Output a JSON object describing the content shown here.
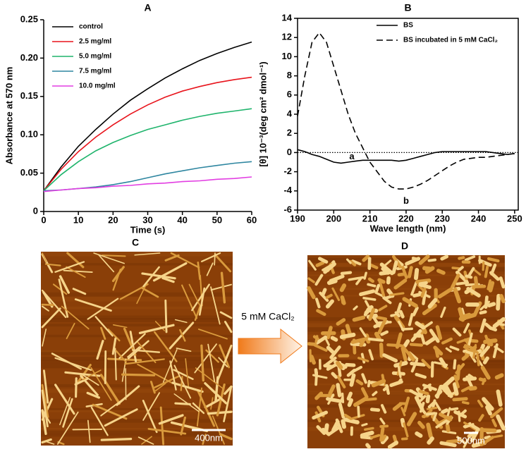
{
  "chart_data": [
    {
      "type": "line",
      "title": "A",
      "x_label": "Time (s)",
      "y_label": "Absorbance at 570 nm",
      "x": [
        0,
        5,
        10,
        15,
        20,
        25,
        30,
        35,
        40,
        45,
        50,
        55,
        60
      ],
      "series": [
        {
          "name": "control",
          "color": "#000000",
          "values": [
            0.027,
            0.058,
            0.085,
            0.107,
            0.127,
            0.145,
            0.16,
            0.174,
            0.186,
            0.197,
            0.206,
            0.214,
            0.221
          ]
        },
        {
          "name": "2.5 mg/ml",
          "color": "#e8141c",
          "values": [
            0.027,
            0.055,
            0.078,
            0.097,
            0.113,
            0.127,
            0.139,
            0.149,
            0.157,
            0.163,
            0.168,
            0.172,
            0.175
          ]
        },
        {
          "name": "5.0 mg/ml",
          "color": "#1fb46c",
          "values": [
            0.027,
            0.048,
            0.065,
            0.079,
            0.09,
            0.099,
            0.107,
            0.113,
            0.119,
            0.124,
            0.128,
            0.131,
            0.134
          ]
        },
        {
          "name": "7.5 mg/ml",
          "color": "#2e86a0",
          "values": [
            0.027,
            0.028,
            0.03,
            0.032,
            0.035,
            0.039,
            0.044,
            0.049,
            0.053,
            0.057,
            0.06,
            0.063,
            0.065
          ]
        },
        {
          "name": "10.0 mg/ml",
          "color": "#e23ee2",
          "values": [
            0.026,
            0.028,
            0.03,
            0.031,
            0.033,
            0.034,
            0.036,
            0.037,
            0.039,
            0.04,
            0.042,
            0.043,
            0.045
          ]
        }
      ],
      "xlim": [
        0,
        60
      ],
      "ylim": [
        0,
        0.25
      ],
      "xticks": [
        0,
        10,
        20,
        30,
        40,
        50,
        60
      ],
      "yticks": [
        0,
        0.05,
        {
          "value": 0.1,
          "label": "0.10"
        },
        0.15,
        {
          "value": 0.2,
          "label": "0.20"
        },
        0.25
      ],
      "legend": "upper left",
      "box": false
    },
    {
      "type": "line",
      "title": "B",
      "x_label": "Wave length (nm)",
      "y_label": "[θ] 10⁻³(deg cm² dmol⁻¹)",
      "x": [
        190,
        192,
        194,
        196,
        198,
        200,
        202,
        204,
        206,
        208,
        210,
        212,
        214,
        216,
        218,
        220,
        222,
        224,
        226,
        228,
        230,
        232,
        234,
        236,
        238,
        240,
        242,
        244,
        246,
        248,
        250
      ],
      "series": [
        {
          "name": "BS",
          "color": "#000000",
          "linestyle": "solid",
          "values": [
            0.3,
            0.1,
            -0.2,
            -0.4,
            -0.7,
            -1.0,
            -1.1,
            -1.0,
            -0.9,
            -0.8,
            -0.8,
            -0.8,
            -0.8,
            -0.8,
            -0.9,
            -0.8,
            -0.6,
            -0.4,
            -0.2,
            0,
            0.1,
            0.1,
            0.1,
            0.1,
            0.1,
            0.1,
            0.1,
            0,
            -0.1,
            -0.2,
            -0.1
          ]
        },
        {
          "name": "BS incubated in 5 mM CaCl₂",
          "color": "#000000",
          "linestyle": "dashed",
          "values": [
            3.8,
            8,
            11.5,
            12.5,
            11.5,
            9,
            6.5,
            4,
            2,
            0.5,
            -1,
            -2,
            -3,
            -3.6,
            -3.8,
            -3.8,
            -3.6,
            -3.3,
            -2.9,
            -2.4,
            -1.9,
            -1.4,
            -1.0,
            -0.7,
            -0.6,
            -0.5,
            -0.5,
            -0.4,
            -0.3,
            -0.2,
            -0.1
          ]
        }
      ],
      "xlim": [
        190,
        251
      ],
      "ylim": [
        -6,
        14
      ],
      "xticks": [
        190,
        200,
        210,
        220,
        230,
        240,
        250
      ],
      "yticks": [
        -6,
        -4,
        -2,
        0,
        2,
        4,
        6,
        8,
        10,
        12,
        14
      ],
      "hline": 0,
      "annotations": [
        "a",
        "b"
      ],
      "legend": "upper right",
      "box": true
    }
  ],
  "images": [
    {
      "label": "C",
      "scale_bar": "400nm"
    },
    {
      "label": "D",
      "scale_bar": "500nm"
    }
  ],
  "arrow_label": "5 mM CaCl₂"
}
